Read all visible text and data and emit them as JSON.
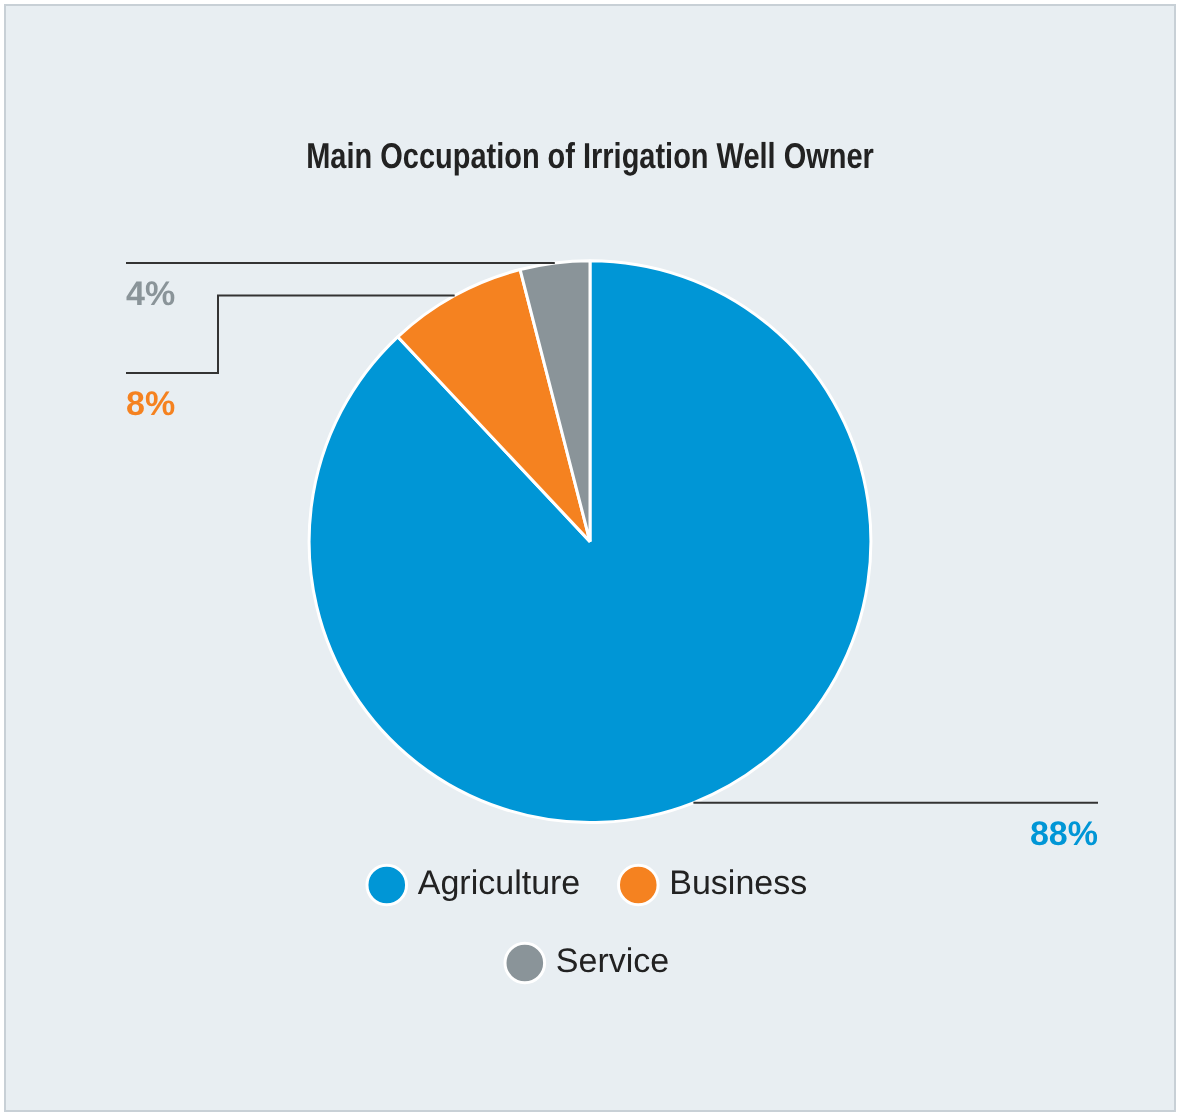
{
  "chart_data": {
    "type": "pie",
    "title": "Main Occupation of Irrigation Well Owner",
    "categories": [
      "Agriculture",
      "Business",
      "Service"
    ],
    "values": [
      88,
      8,
      4
    ],
    "colors": [
      "#0096d6",
      "#f58220",
      "#8a9499"
    ],
    "value_labels": [
      "88%",
      "8%",
      "4%"
    ],
    "legend": "bottom"
  }
}
